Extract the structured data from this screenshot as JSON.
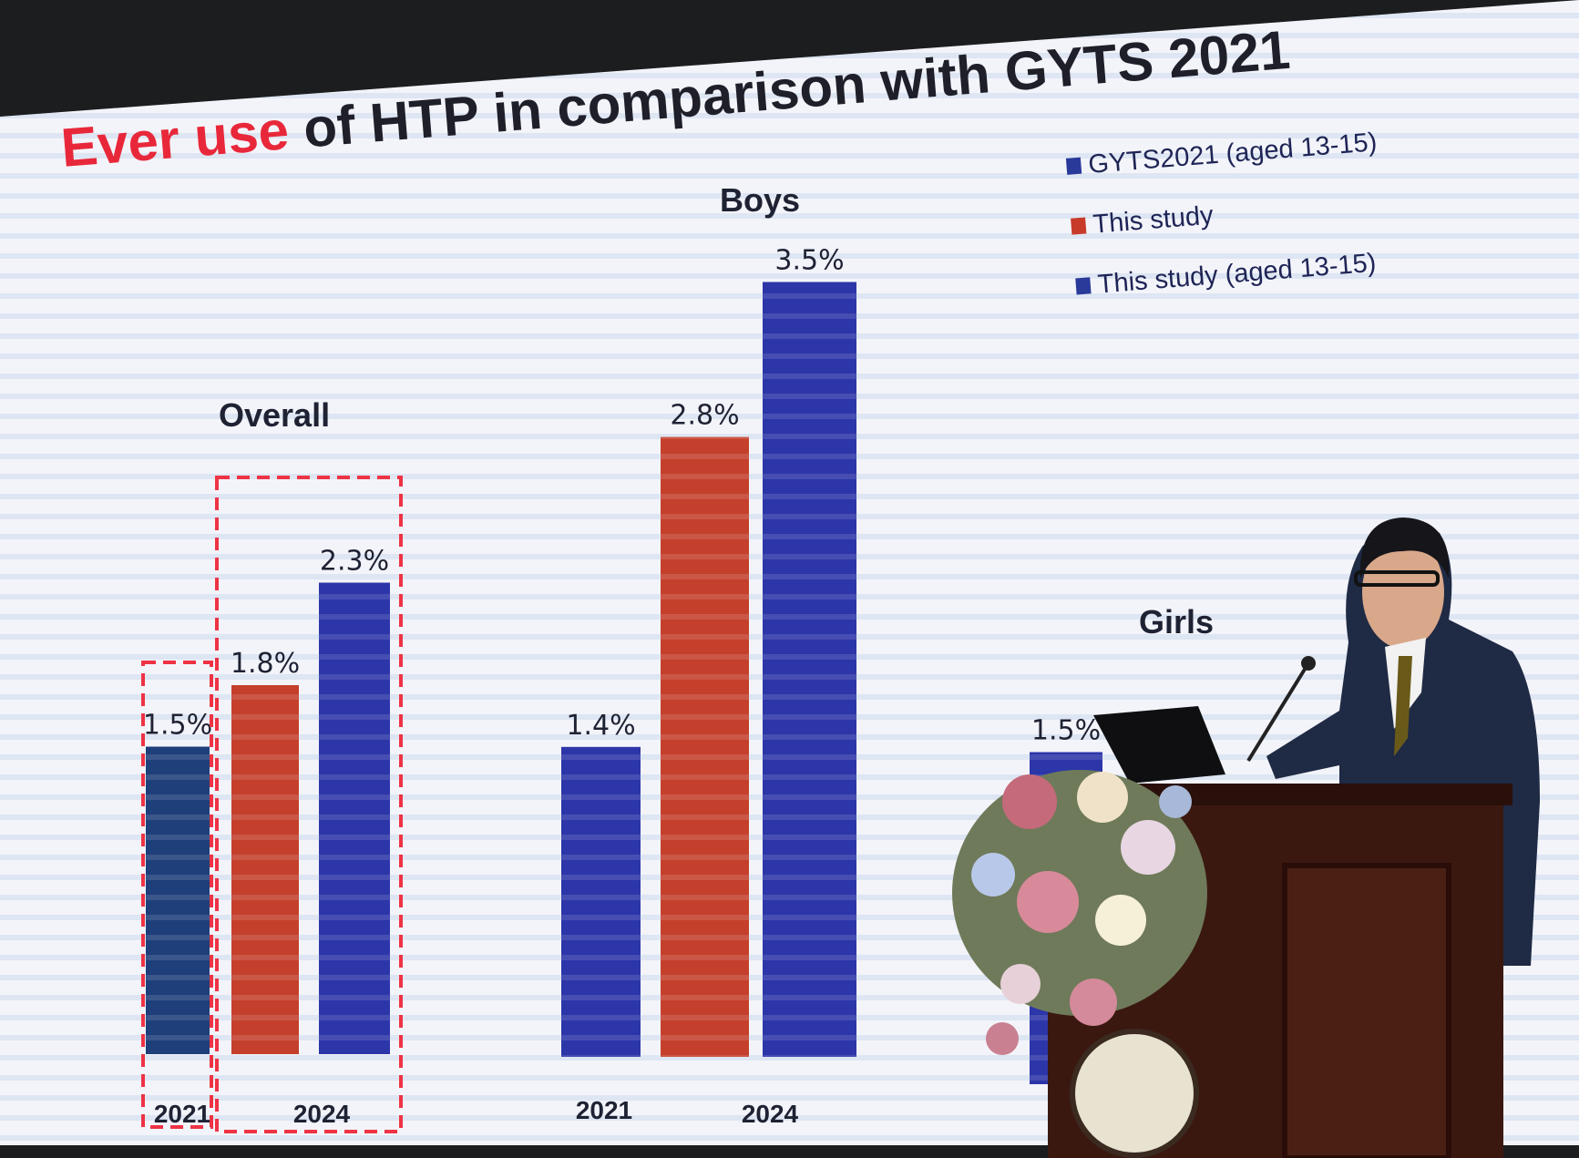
{
  "slide": {
    "title_highlight": "Ever use",
    "title_rest": " of HTP in comparison with GYTS 2021"
  },
  "legend": [
    {
      "label": "GYTS2021 (aged 13-15)",
      "color": "#2a3a9a"
    },
    {
      "label": "This study",
      "color": "#c83a2a"
    },
    {
      "label": "This study (aged 13-15)",
      "color": "#2a3a9a"
    }
  ],
  "chart_data": [
    {
      "type": "bar",
      "title": "Overall",
      "categories": [
        "2021",
        "2024"
      ],
      "bars": [
        {
          "series": "GYTS2021 (aged 13-15)",
          "year": "2021",
          "value": 1.5,
          "label": "1.5%",
          "color": "#1f3f7a"
        },
        {
          "series": "This study",
          "year": "2024",
          "value": 1.8,
          "label": "1.8%",
          "color": "#c4402c"
        },
        {
          "series": "This study (aged 13-15)",
          "year": "2024",
          "value": 2.3,
          "label": "2.3%",
          "color": "#2c36a8"
        }
      ],
      "highlight_boxes": [
        "2021",
        "2024"
      ],
      "highlight_color": "#ee3344"
    },
    {
      "type": "bar",
      "title": "Boys",
      "categories": [
        "2021",
        "2024"
      ],
      "bars": [
        {
          "series": "GYTS2021 (aged 13-15)",
          "year": "2021",
          "value": 1.4,
          "label": "1.4%",
          "color": "#2c36a8"
        },
        {
          "series": "This study",
          "year": "2024",
          "value": 2.8,
          "label": "2.8%",
          "color": "#c4402c"
        },
        {
          "series": "This study (aged 13-15)",
          "year": "2024",
          "value": 3.5,
          "label": "3.5%",
          "color": "#2c36a8"
        }
      ]
    },
    {
      "type": "bar",
      "title": "Girls",
      "categories": [],
      "bars": [
        {
          "series": "GYTS2021 (aged 13-15)",
          "year": "2021",
          "value": 1.5,
          "label": "1.5%",
          "color": "#2c36a8"
        }
      ]
    }
  ]
}
